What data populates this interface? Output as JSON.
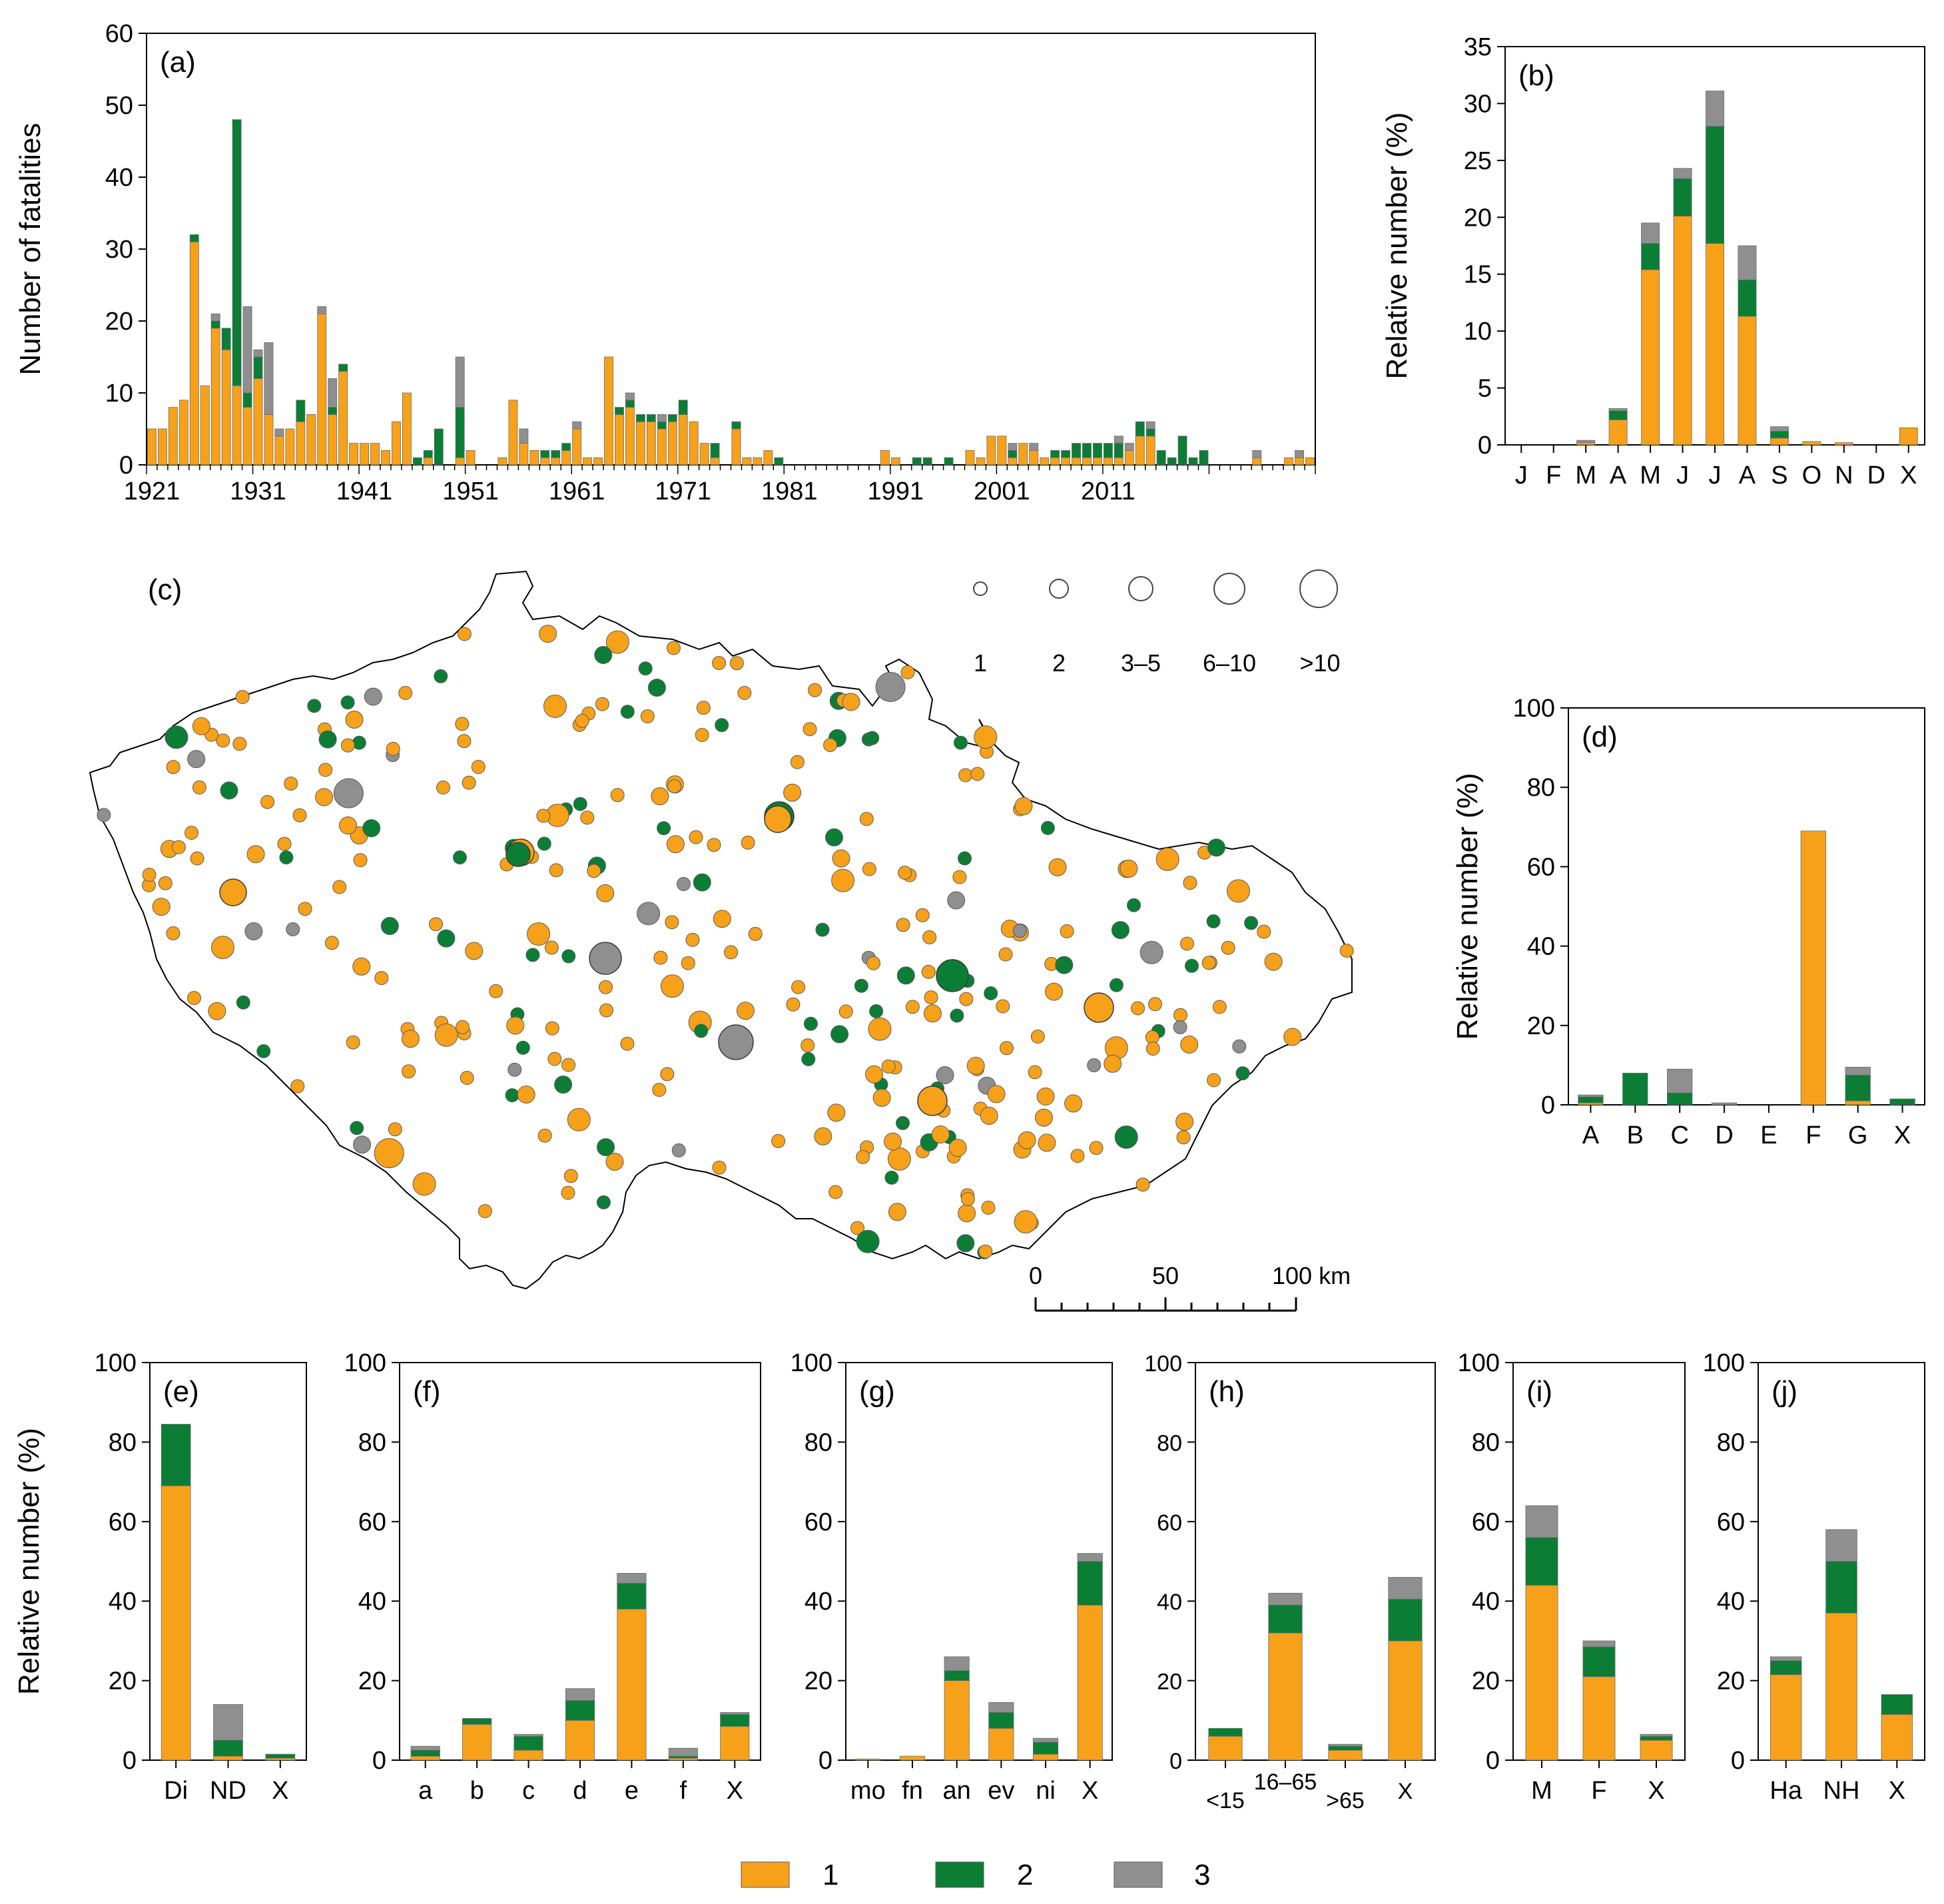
{
  "colors": {
    "c1": "#f7a11a",
    "c2": "#0b7d35",
    "c3": "#8f8f8f"
  },
  "legend": {
    "items": [
      "1",
      "2",
      "3"
    ]
  },
  "chart_data": [
    {
      "id": "a",
      "type": "bar",
      "stacked": true,
      "panel_label": "(a)",
      "ylabel": "Number of fatalities",
      "ylim": [
        0,
        60
      ],
      "yticks": [
        0,
        10,
        20,
        30,
        40,
        50,
        60
      ],
      "x_start": 1921,
      "xtick_labels": [
        "1921",
        "1931",
        "1941",
        "1951",
        "1961",
        "1971",
        "1981",
        "1991",
        "2001",
        "2011"
      ],
      "series": [
        {
          "name": "1",
          "values": [
            5,
            5,
            8,
            9,
            31,
            11,
            19,
            16,
            11,
            8,
            12,
            7,
            4,
            5,
            6,
            7,
            21,
            7,
            13,
            3,
            3,
            3,
            2,
            6,
            10,
            0,
            1,
            0,
            0,
            1,
            2,
            0,
            0,
            1,
            9,
            3,
            2,
            1,
            1,
            2,
            5,
            1,
            1,
            15,
            7,
            8,
            6,
            6,
            5,
            6,
            7,
            6,
            3,
            1,
            0,
            5,
            1,
            1,
            2,
            0,
            0,
            0,
            0,
            0,
            0,
            0,
            0,
            0,
            0,
            2,
            1,
            0,
            0,
            0,
            0,
            0,
            0,
            2,
            1,
            4,
            4,
            1,
            3,
            2,
            1,
            1,
            1,
            1,
            1,
            1,
            1,
            1,
            2,
            4,
            4,
            0,
            0,
            0,
            0,
            0,
            0,
            0,
            0,
            0,
            1,
            0,
            0,
            1,
            1,
            1
          ]
        },
        {
          "name": "2",
          "values": [
            0,
            0,
            0,
            0,
            1,
            0,
            1,
            3,
            37,
            2,
            3,
            0,
            0,
            0,
            3,
            0,
            0,
            1,
            1,
            0,
            0,
            0,
            0,
            0,
            0,
            1,
            1,
            5,
            0,
            7,
            0,
            0,
            0,
            0,
            0,
            0,
            0,
            1,
            1,
            1,
            0,
            0,
            0,
            0,
            1,
            1,
            1,
            1,
            1,
            1,
            2,
            0,
            0,
            2,
            0,
            1,
            0,
            0,
            0,
            1,
            0,
            0,
            0,
            0,
            0,
            0,
            0,
            0,
            0,
            0,
            0,
            0,
            1,
            1,
            0,
            1,
            0,
            0,
            0,
            0,
            0,
            1,
            0,
            0,
            0,
            1,
            1,
            2,
            2,
            2,
            2,
            2,
            0,
            2,
            1,
            2,
            1,
            4,
            1,
            2,
            0,
            0,
            0,
            0,
            0,
            0,
            0,
            0,
            0,
            0
          ]
        },
        {
          "name": "3",
          "values": [
            0,
            0,
            0,
            0,
            0,
            0,
            1,
            0,
            0,
            12,
            1,
            10,
            1,
            0,
            0,
            0,
            1,
            4,
            0,
            0,
            0,
            0,
            0,
            0,
            0,
            0,
            0,
            0,
            0,
            7,
            0,
            0,
            0,
            0,
            0,
            2,
            0,
            0,
            0,
            0,
            1,
            0,
            0,
            0,
            0,
            1,
            0,
            0,
            1,
            0,
            0,
            0,
            0,
            0,
            0,
            0,
            0,
            0,
            0,
            0,
            0,
            0,
            0,
            0,
            0,
            0,
            0,
            0,
            0,
            0,
            0,
            0,
            0,
            0,
            0,
            0,
            0,
            0,
            0,
            0,
            0,
            1,
            0,
            1,
            0,
            0,
            0,
            0,
            0,
            0,
            0,
            1,
            1,
            0,
            1,
            0,
            0,
            0,
            0,
            0,
            0,
            0,
            0,
            0,
            1,
            0,
            0,
            0,
            1,
            0
          ]
        }
      ]
    },
    {
      "id": "b",
      "type": "bar",
      "stacked": true,
      "panel_label": "(b)",
      "ylabel": "Relative number (%)",
      "ylim": [
        0,
        35
      ],
      "yticks": [
        0,
        5,
        10,
        15,
        20,
        25,
        30,
        35
      ],
      "categories": [
        "J",
        "F",
        "M",
        "A",
        "M",
        "J",
        "J",
        "A",
        "S",
        "O",
        "N",
        "D",
        "X"
      ],
      "series": [
        {
          "name": "1",
          "values": [
            0,
            0,
            0.2,
            2.2,
            15.4,
            20.1,
            17.7,
            11.3,
            0.6,
            0.3,
            0.2,
            0,
            1.5
          ]
        },
        {
          "name": "2",
          "values": [
            0,
            0,
            0,
            0.8,
            2.3,
            3.3,
            10.3,
            3.2,
            0.6,
            0,
            0,
            0,
            0
          ]
        },
        {
          "name": "3",
          "values": [
            0,
            0,
            0.2,
            0.2,
            1.8,
            0.9,
            3.1,
            3.0,
            0.4,
            0,
            0,
            0,
            0
          ]
        }
      ]
    },
    {
      "id": "d",
      "type": "bar",
      "stacked": true,
      "panel_label": "(d)",
      "ylabel": "Relative number (%)",
      "ylim": [
        0,
        100
      ],
      "yticks": [
        0,
        20,
        40,
        60,
        80,
        100
      ],
      "categories": [
        "A",
        "B",
        "C",
        "D",
        "E",
        "F",
        "G",
        "X"
      ],
      "series": [
        {
          "name": "1",
          "values": [
            0.5,
            0,
            0,
            0,
            0,
            69,
            1,
            0
          ]
        },
        {
          "name": "2",
          "values": [
            1.5,
            8,
            3,
            0,
            0,
            0,
            6.5,
            1.5
          ]
        },
        {
          "name": "3",
          "values": [
            0.5,
            0,
            6,
            0.5,
            0,
            0,
            2,
            0
          ]
        }
      ]
    },
    {
      "id": "e",
      "type": "bar",
      "stacked": true,
      "panel_label": "(e)",
      "ylabel": "Relative number (%)",
      "ylim": [
        0,
        100
      ],
      "yticks": [
        0,
        20,
        40,
        60,
        80,
        100
      ],
      "categories": [
        "Di",
        "ND",
        "X"
      ],
      "series": [
        {
          "name": "1",
          "values": [
            69,
            1,
            0.5
          ]
        },
        {
          "name": "2",
          "values": [
            15.5,
            4,
            1
          ]
        },
        {
          "name": "3",
          "values": [
            0,
            9,
            0
          ]
        }
      ]
    },
    {
      "id": "f",
      "type": "bar",
      "stacked": true,
      "panel_label": "(f)",
      "ylim": [
        0,
        100
      ],
      "yticks": [
        0,
        20,
        40,
        60,
        80,
        100
      ],
      "categories": [
        "a",
        "b",
        "c",
        "d",
        "e",
        "f",
        "X"
      ],
      "series": [
        {
          "name": "1",
          "values": [
            1,
            9,
            2.5,
            10,
            38,
            0.5,
            8.5
          ]
        },
        {
          "name": "2",
          "values": [
            1.5,
            1.5,
            3.5,
            5,
            6.5,
            0.5,
            3
          ]
        },
        {
          "name": "3",
          "values": [
            1,
            0,
            0.5,
            3,
            2.5,
            2,
            0.5
          ]
        }
      ]
    },
    {
      "id": "g",
      "type": "bar",
      "stacked": true,
      "panel_label": "(g)",
      "ylim": [
        0,
        100
      ],
      "yticks": [
        0,
        20,
        40,
        60,
        80,
        100
      ],
      "categories": [
        "mo",
        "fn",
        "an",
        "ev",
        "ni",
        "X"
      ],
      "series": [
        {
          "name": "1",
          "values": [
            0.3,
            1,
            20,
            8,
            1.5,
            39
          ]
        },
        {
          "name": "2",
          "values": [
            0,
            0,
            2.5,
            4,
            3,
            11
          ]
        },
        {
          "name": "3",
          "values": [
            0,
            0,
            3.5,
            2.5,
            1,
            2
          ]
        }
      ]
    },
    {
      "id": "h",
      "type": "bar",
      "stacked": true,
      "panel_label": "(h)",
      "ylim": [
        0,
        100
      ],
      "yticks": [
        0,
        20,
        40,
        60,
        80,
        100
      ],
      "categories": [
        "<15",
        "16–65",
        ">65",
        "X"
      ],
      "series": [
        {
          "name": "1",
          "values": [
            6,
            32,
            2.5,
            30
          ]
        },
        {
          "name": "2",
          "values": [
            2,
            7,
            1,
            10.5
          ]
        },
        {
          "name": "3",
          "values": [
            0,
            3,
            0.5,
            5.5
          ]
        }
      ]
    },
    {
      "id": "i",
      "type": "bar",
      "stacked": true,
      "panel_label": "(i)",
      "ylim": [
        0,
        100
      ],
      "yticks": [
        0,
        20,
        40,
        60,
        80,
        100
      ],
      "categories": [
        "M",
        "F",
        "X"
      ],
      "series": [
        {
          "name": "1",
          "values": [
            44,
            21,
            5
          ]
        },
        {
          "name": "2",
          "values": [
            12,
            7.5,
            1
          ]
        },
        {
          "name": "3",
          "values": [
            8,
            1.5,
            0.5
          ]
        }
      ]
    },
    {
      "id": "j",
      "type": "bar",
      "stacked": true,
      "panel_label": "(j)",
      "ylim": [
        0,
        100
      ],
      "yticks": [
        0,
        20,
        40,
        60,
        80,
        100
      ],
      "categories": [
        "Ha",
        "NH",
        "X"
      ],
      "series": [
        {
          "name": "1",
          "values": [
            21.5,
            37,
            11.5
          ]
        },
        {
          "name": "2",
          "values": [
            3.5,
            13,
            5
          ]
        },
        {
          "name": "3",
          "values": [
            1,
            8,
            0
          ]
        }
      ]
    }
  ],
  "map": {
    "panel_label": "(c)",
    "size_legend": [
      "1",
      "2",
      "3–5",
      "6–10",
      ">10"
    ],
    "scale_labels": [
      "0",
      "50",
      "100 km"
    ]
  }
}
